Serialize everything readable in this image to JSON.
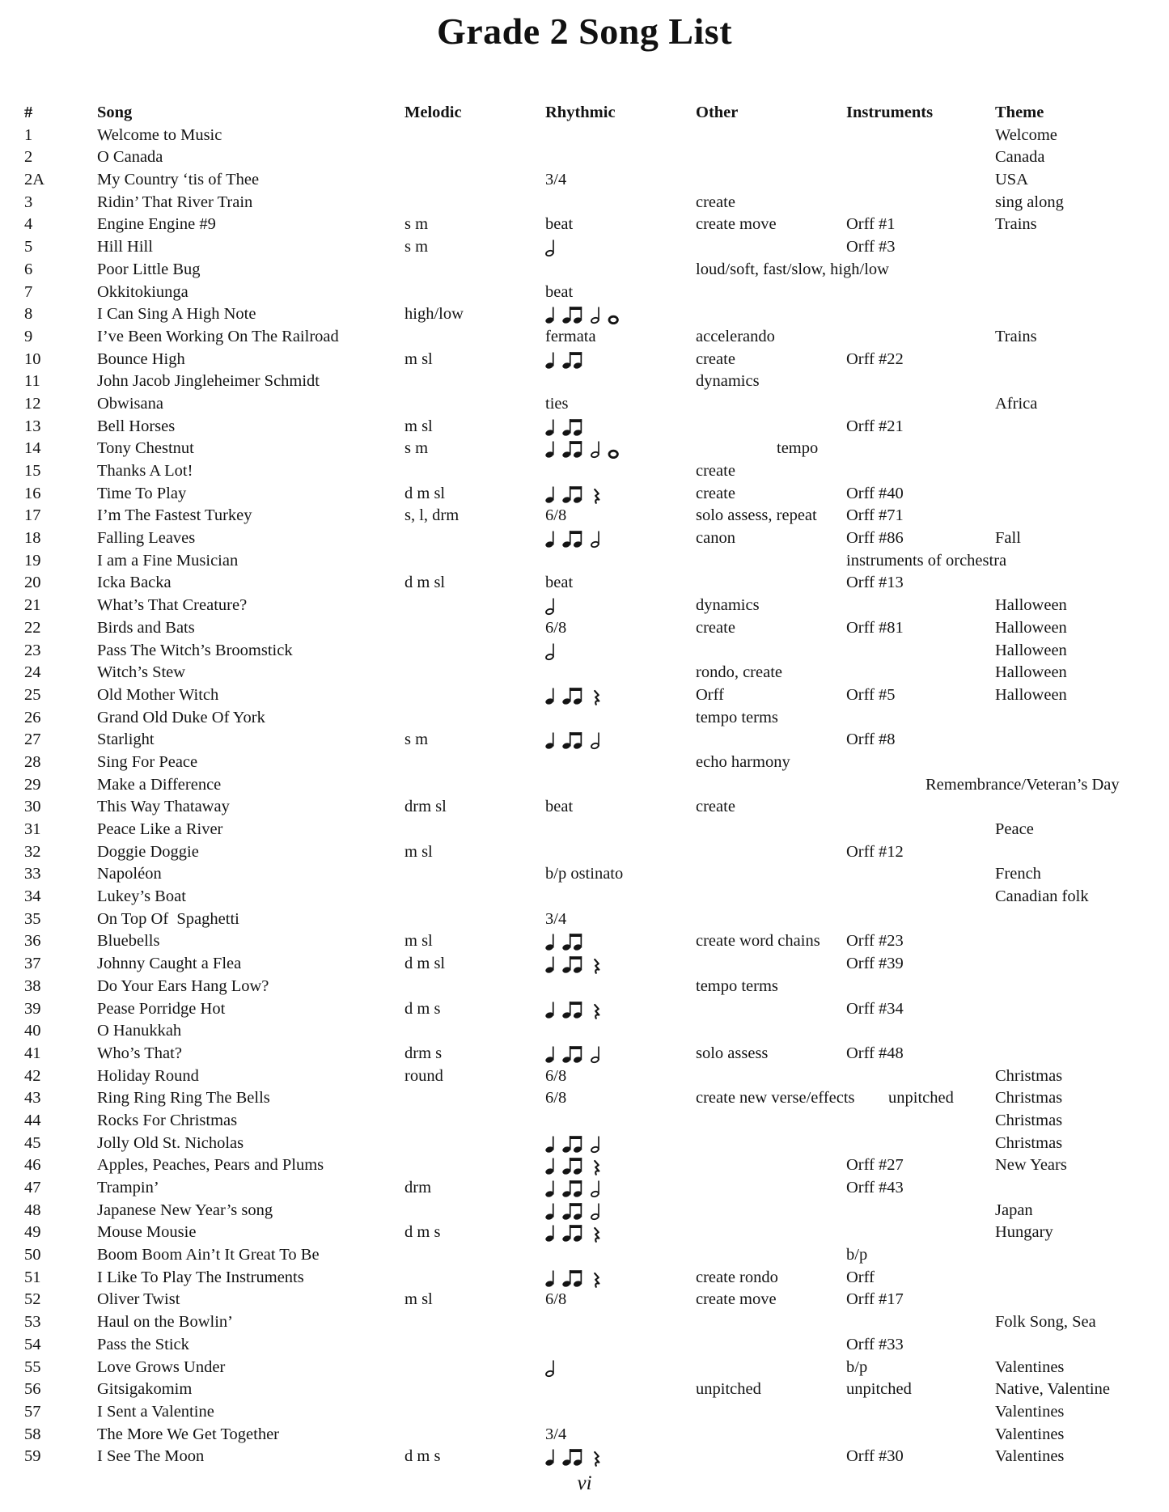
{
  "title": "Grade 2 Song List",
  "footer": {
    "page_number": "vi"
  },
  "colors": {
    "ink": "#141414",
    "background": "#ffffff"
  },
  "note_icons": {
    "q": "quarter-note",
    "ee": "eighth-note-pair",
    "h": "half-note",
    "w": "whole-note",
    "r": "quarter-rest"
  },
  "table": {
    "columns": [
      "#",
      "Song",
      "Melodic",
      "Rhythmic",
      "Other",
      "Instruments",
      "Theme"
    ],
    "rows": [
      {
        "num": "1",
        "song": "Welcome to Music",
        "theme": "Welcome"
      },
      {
        "num": "2",
        "song": "O Canada",
        "theme": "Canada"
      },
      {
        "num": "2A",
        "song": "My Country ‘tis of Thee",
        "rhythmic": "3/4",
        "theme": "USA"
      },
      {
        "num": "3",
        "song": "Ridin’ That River Train",
        "other": "create",
        "theme": "sing along"
      },
      {
        "num": "4",
        "song": "Engine Engine #9",
        "melodic": "s m",
        "rhythmic": "beat",
        "other": "create move",
        "instruments": "Orff #1",
        "theme": "Trains"
      },
      {
        "num": "5",
        "song": "Hill Hill",
        "melodic": "s m",
        "rhythm": "h",
        "instruments": "Orff #3"
      },
      {
        "num": "6",
        "song": "Poor Little Bug",
        "other": "loud/soft, fast/slow, high/low"
      },
      {
        "num": "7",
        "song": "Okkitokiunga",
        "rhythmic": "beat"
      },
      {
        "num": "8",
        "song": "I Can Sing A High Note",
        "melodic": "high/low",
        "rhythm": "q ee h w"
      },
      {
        "num": "9",
        "song": "I’ve Been Working On The Railroad",
        "rhythmic": "fermata",
        "other": "accelerando",
        "theme": "Trains"
      },
      {
        "num": "10",
        "song": "Bounce High",
        "melodic": "m sl",
        "rhythm": "q ee",
        "other": "create",
        "instruments": "Orff #22"
      },
      {
        "num": "11",
        "song": "John Jacob Jingleheimer Schmidt",
        "other": "dynamics"
      },
      {
        "num": "12",
        "song": "Obwisana",
        "rhythmic": "ties",
        "theme": "Africa"
      },
      {
        "num": "13",
        "song": "Bell Horses",
        "melodic": "m sl",
        "rhythm": "q ee",
        "instruments": "Orff #21"
      },
      {
        "num": "14",
        "song": "Tony Chestnut",
        "melodic": "s m",
        "rhythm": "q ee h w",
        "other": "tempo",
        "other_indent": true
      },
      {
        "num": "15",
        "song": "Thanks A Lot!",
        "other": "create"
      },
      {
        "num": "16",
        "song": "Time To Play",
        "melodic": "d m sl",
        "rhythm": "q ee r",
        "other": "create",
        "instruments": "Orff #40"
      },
      {
        "num": "17",
        "song": "I’m The Fastest Turkey",
        "melodic": "s, l, drm",
        "rhythmic": "6/8",
        "other": "solo assess, repeat",
        "instruments": "Orff #71"
      },
      {
        "num": "18",
        "song": "Falling Leaves",
        "rhythm": "q ee h",
        "other": "canon",
        "instruments": "Orff #86",
        "theme": "Fall"
      },
      {
        "num": "19",
        "song": "I am a Fine Musician",
        "instruments": "instruments of orchestra"
      },
      {
        "num": "20",
        "song": "Icka Backa",
        "melodic": "d m sl",
        "rhythmic": "beat",
        "instruments": "Orff #13"
      },
      {
        "num": "21",
        "song": "What’s That Creature?",
        "rhythm": "h",
        "other": "dynamics",
        "theme": "Halloween"
      },
      {
        "num": "22",
        "song": "Birds and Bats",
        "rhythmic": "6/8",
        "other": "create",
        "instruments": "Orff #81",
        "theme": "Halloween"
      },
      {
        "num": "23",
        "song": "Pass The Witch’s Broomstick",
        "rhythm": "h",
        "theme": "Halloween"
      },
      {
        "num": "24",
        "song": "Witch’s Stew",
        "other": "rondo, create",
        "theme": "Halloween"
      },
      {
        "num": "25",
        "song": "Old Mother Witch",
        "rhythm": "q ee r",
        "other": "Orff",
        "instruments": "Orff #5",
        "theme": "Halloween"
      },
      {
        "num": "26",
        "song": "Grand Old Duke Of York",
        "other": "tempo terms"
      },
      {
        "num": "27",
        "song": "Starlight",
        "melodic": "s m",
        "rhythm": "q ee h",
        "instruments": "Orff #8"
      },
      {
        "num": "28",
        "song": "Sing For Peace",
        "other": "echo harmony"
      },
      {
        "num": "29",
        "song": "Make a Difference",
        "theme": "Remembrance/Veteran’s Day",
        "theme_wide": true
      },
      {
        "num": "30",
        "song": "This Way Thataway",
        "melodic": "drm sl",
        "rhythmic": "beat",
        "other": "create"
      },
      {
        "num": "31",
        "song": "Peace Like a River",
        "theme": "Peace"
      },
      {
        "num": "32",
        "song": "Doggie Doggie",
        "melodic": "m sl",
        "instruments": "Orff #12"
      },
      {
        "num": "33",
        "song": "Napoléon",
        "rhythmic": "b/p ostinato",
        "theme": "French"
      },
      {
        "num": "34",
        "song": "Lukey’s Boat",
        "theme": "Canadian folk"
      },
      {
        "num": "35",
        "song": "On Top Of  Spaghetti",
        "rhythmic": "3/4"
      },
      {
        "num": "36",
        "song": "Bluebells",
        "melodic": "m sl",
        "rhythm": "q ee",
        "other": "create word chains",
        "instruments": "Orff #23"
      },
      {
        "num": "37",
        "song": "Johnny Caught a Flea",
        "melodic": "d m sl",
        "rhythm": "q ee r",
        "instruments": "Orff #39"
      },
      {
        "num": "38",
        "song": "Do Your Ears Hang Low?",
        "other": "tempo terms"
      },
      {
        "num": "39",
        "song": "Pease Porridge Hot",
        "melodic": "d m s",
        "rhythm": "q ee r",
        "instruments": "Orff #34"
      },
      {
        "num": "40",
        "song": "O Hanukkah"
      },
      {
        "num": "41",
        "song": "Who’s That?",
        "melodic": "drm s",
        "rhythm": "q ee h",
        "other": "solo assess",
        "instruments": "Orff #48"
      },
      {
        "num": "42",
        "song": "Holiday Round",
        "melodic": "round",
        "rhythmic": "6/8",
        "theme": "Christmas"
      },
      {
        "num": "43",
        "song": "Ring Ring Ring The Bells",
        "rhythmic": "6/8",
        "other": "create new verse/effects",
        "instruments": "unpitched",
        "instr_indent": true,
        "theme": "Christmas"
      },
      {
        "num": "44",
        "song": "Rocks For Christmas",
        "theme": "Christmas"
      },
      {
        "num": "45",
        "song": "Jolly Old St. Nicholas",
        "rhythm": "q ee h",
        "theme": "Christmas"
      },
      {
        "num": "46",
        "song": "Apples, Peaches, Pears and Plums",
        "rhythm": "q ee r",
        "instruments": "Orff #27",
        "theme": "New Years"
      },
      {
        "num": "47",
        "song": "Trampin’",
        "melodic": "drm",
        "rhythm": "q ee h",
        "instruments": "Orff #43"
      },
      {
        "num": "48",
        "song": "Japanese New Year’s song",
        "rhythm": "q ee h",
        "theme": "Japan"
      },
      {
        "num": "49",
        "song": "Mouse Mousie",
        "melodic": "d m s",
        "rhythm": "q ee r",
        "theme": "Hungary"
      },
      {
        "num": "50",
        "song": "Boom Boom Ain’t It Great To Be",
        "instruments": "b/p"
      },
      {
        "num": "51",
        "song": "I Like To Play The Instruments",
        "rhythm": "q ee r",
        "other": "create rondo",
        "instruments": "Orff"
      },
      {
        "num": "52",
        "song": "Oliver Twist",
        "melodic": "m sl",
        "rhythmic": "6/8",
        "other": "create move",
        "instruments": "Orff #17"
      },
      {
        "num": "53",
        "song": "Haul on the Bowlin’",
        "theme": "Folk Song, Sea"
      },
      {
        "num": "54",
        "song": "Pass the Stick",
        "instruments": "Orff #33"
      },
      {
        "num": "55",
        "song": "Love Grows Under",
        "rhythm": "h",
        "instruments": "b/p",
        "theme": "Valentines"
      },
      {
        "num": "56",
        "song": "Gitsigakomim",
        "other": "unpitched",
        "instruments": "unpitched",
        "theme": "Native, Valentine"
      },
      {
        "num": "57",
        "song": "I Sent a Valentine",
        "theme": "Valentines"
      },
      {
        "num": "58",
        "song": "The More We Get Together",
        "rhythmic": "3/4",
        "theme": "Valentines"
      },
      {
        "num": "59",
        "song": "I See The Moon",
        "melodic": "d m s",
        "rhythm": "q ee r",
        "instruments": "Orff #30",
        "theme": "Valentines"
      }
    ]
  }
}
